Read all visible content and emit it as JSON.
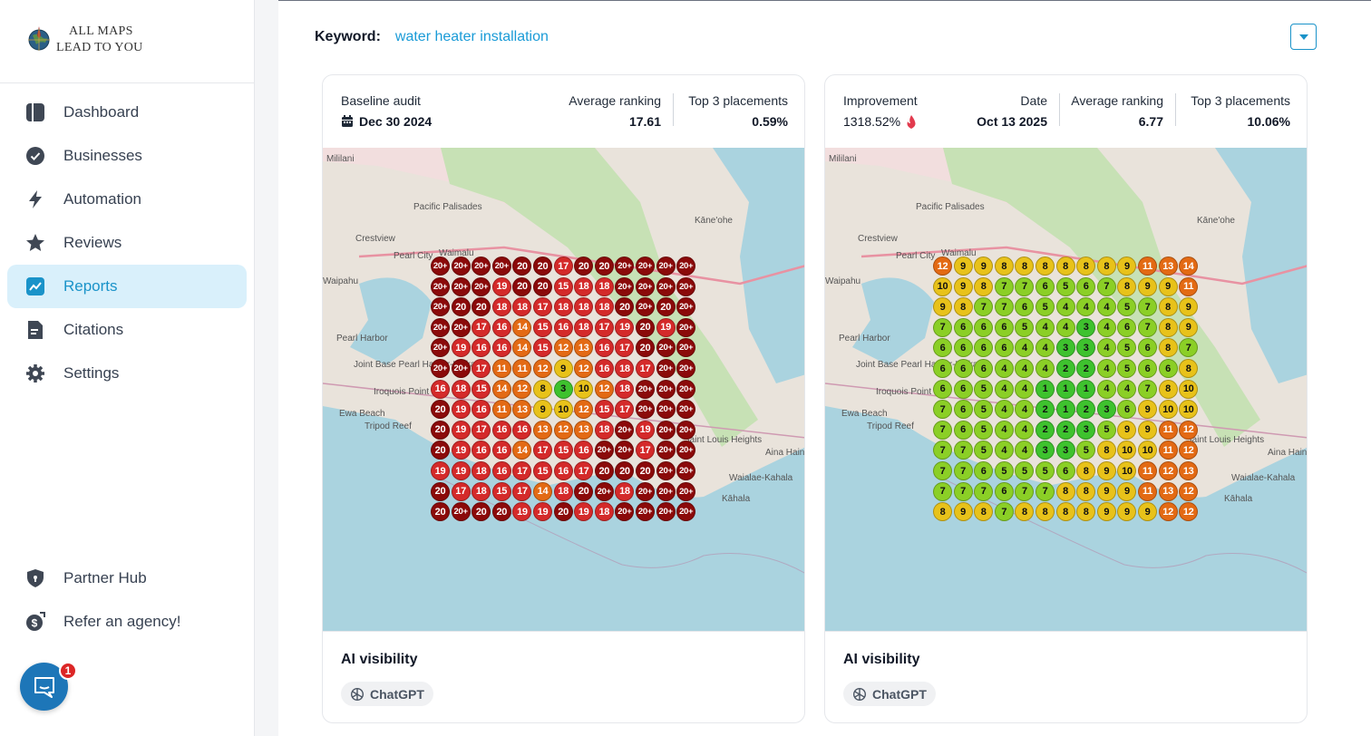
{
  "brand": {
    "line1": "ALL MAPS",
    "line2": "LEAD TO YOU"
  },
  "nav": {
    "items": [
      {
        "label": "Dashboard",
        "icon": "dashboard-icon"
      },
      {
        "label": "Businesses",
        "icon": "verified-badge-icon"
      },
      {
        "label": "Automation",
        "icon": "lightning-icon"
      },
      {
        "label": "Reviews",
        "icon": "star-icon"
      },
      {
        "label": "Reports",
        "icon": "chart-line-icon",
        "active": true
      },
      {
        "label": "Citations",
        "icon": "document-icon"
      },
      {
        "label": "Settings",
        "icon": "gear-icon"
      }
    ],
    "bottom": [
      {
        "label": "Partner Hub",
        "icon": "shield-icon"
      },
      {
        "label": "Refer an agency!",
        "icon": "dollar-icon"
      }
    ]
  },
  "chat": {
    "badge": "1"
  },
  "keyword": {
    "label": "Keyword:",
    "value": "water heater installation"
  },
  "colors": {
    "accent": "#1a93c9",
    "green": "#3ec22e",
    "yellow": "#e8c21a",
    "orange": "#e36a14",
    "red": "#d42a2a",
    "darkred": "#8b0a0a"
  },
  "map_labels": [
    "Mililani",
    "Pacific Palisades",
    "Crestview",
    "Pearl City",
    "Waimalu",
    "Waipahu",
    "Pearl Harbor",
    "Joint Base Pearl Harbor-Hickam",
    "Iroquois Point",
    "Ewa Beach",
    "Tripod Reef",
    "Kāne'ohe",
    "Waialae-Kahala",
    "Kāhala",
    "Saint Louis Heights",
    "Aina Haina"
  ],
  "cards": [
    {
      "stat1": {
        "label": "Baseline audit",
        "value": "Dec 30 2024",
        "icon": "calendar-icon"
      },
      "stat2": {
        "label": "Average ranking",
        "value": "17.61"
      },
      "stat3": {
        "label": "Top 3 placements",
        "value": "0.59%"
      },
      "footer": {
        "title": "AI visibility",
        "chip": "ChatGPT",
        "chip_icon": "openai-icon"
      },
      "grid": [
        [
          "20+",
          "20+",
          "20+",
          "20+",
          "20",
          "20",
          "17",
          "20",
          "20",
          "20+",
          "20+",
          "20+",
          "20+"
        ],
        [
          "20+",
          "20+",
          "20+",
          "19",
          "20",
          "20",
          "15",
          "18",
          "18",
          "20+",
          "20+",
          "20+",
          "20+"
        ],
        [
          "20+",
          "20",
          "20",
          "18",
          "18",
          "17",
          "18",
          "18",
          "18",
          "20",
          "20+",
          "20",
          "20+"
        ],
        [
          "20+",
          "20+",
          "17",
          "16",
          "14",
          "15",
          "16",
          "18",
          "17",
          "19",
          "20",
          "19",
          "20+"
        ],
        [
          "20+",
          "19",
          "16",
          "16",
          "14",
          "15",
          "12",
          "13",
          "16",
          "17",
          "20",
          "20+",
          "20+"
        ],
        [
          "20+",
          "20+",
          "17",
          "11",
          "11",
          "12",
          "9",
          "12",
          "16",
          "18",
          "17",
          "20+",
          "20+"
        ],
        [
          "16",
          "18",
          "15",
          "14",
          "12",
          "8",
          "3",
          "10",
          "12",
          "18",
          "20+",
          "20+",
          "20+"
        ],
        [
          "20",
          "19",
          "16",
          "11",
          "13",
          "9",
          "10",
          "12",
          "15",
          "17",
          "20+",
          "20+",
          "20+"
        ],
        [
          "20",
          "19",
          "17",
          "16",
          "16",
          "13",
          "12",
          "13",
          "18",
          "20+",
          "19",
          "20+",
          "20+"
        ],
        [
          "20",
          "19",
          "16",
          "16",
          "14",
          "17",
          "15",
          "16",
          "20+",
          "20+",
          "17",
          "20+",
          "20+"
        ],
        [
          "19",
          "19",
          "18",
          "16",
          "17",
          "15",
          "16",
          "17",
          "20",
          "20",
          "20",
          "20+",
          "20+"
        ],
        [
          "20",
          "17",
          "18",
          "15",
          "17",
          "14",
          "18",
          "20",
          "20+",
          "18",
          "20+",
          "20+",
          "20+"
        ],
        [
          "20",
          "20+",
          "20",
          "20",
          "19",
          "19",
          "20",
          "19",
          "18",
          "20+",
          "20+",
          "20+",
          "20+"
        ]
      ]
    },
    {
      "stat1": {
        "label": "Improvement",
        "value": "1318.52%",
        "icon": "fire-icon"
      },
      "stat1b": {
        "label": "Date",
        "value": "Oct 13 2025"
      },
      "stat2": {
        "label": "Average ranking",
        "value": "6.77"
      },
      "stat3": {
        "label": "Top 3 placements",
        "value": "10.06%"
      },
      "footer": {
        "title": "AI visibility",
        "chip": "ChatGPT",
        "chip_icon": "openai-icon"
      },
      "grid": [
        [
          "12",
          "9",
          "9",
          "8",
          "8",
          "8",
          "8",
          "8",
          "8",
          "9",
          "11",
          "13",
          "14"
        ],
        [
          "10",
          "9",
          "8",
          "7",
          "7",
          "6",
          "5",
          "6",
          "7",
          "8",
          "9",
          "9",
          "11"
        ],
        [
          "9",
          "8",
          "7",
          "7",
          "6",
          "5",
          "4",
          "4",
          "4",
          "5",
          "7",
          "8",
          "9"
        ],
        [
          "7",
          "6",
          "6",
          "6",
          "5",
          "4",
          "4",
          "3",
          "4",
          "6",
          "7",
          "8",
          "9"
        ],
        [
          "6",
          "6",
          "6",
          "6",
          "4",
          "4",
          "3",
          "3",
          "4",
          "5",
          "6",
          "8",
          "7"
        ],
        [
          "6",
          "6",
          "6",
          "4",
          "4",
          "4",
          "2",
          "2",
          "4",
          "5",
          "6",
          "6",
          "8"
        ],
        [
          "6",
          "6",
          "5",
          "4",
          "4",
          "1",
          "1",
          "1",
          "4",
          "4",
          "7",
          "8",
          "10"
        ],
        [
          "7",
          "6",
          "5",
          "4",
          "4",
          "2",
          "1",
          "2",
          "3",
          "6",
          "9",
          "10",
          "10"
        ],
        [
          "7",
          "6",
          "5",
          "4",
          "4",
          "2",
          "2",
          "3",
          "5",
          "9",
          "9",
          "11",
          "12"
        ],
        [
          "7",
          "7",
          "5",
          "4",
          "4",
          "3",
          "3",
          "5",
          "8",
          "10",
          "10",
          "11",
          "12"
        ],
        [
          "7",
          "7",
          "6",
          "5",
          "5",
          "5",
          "6",
          "8",
          "9",
          "10",
          "11",
          "12",
          "13"
        ],
        [
          "7",
          "7",
          "7",
          "6",
          "7",
          "7",
          "8",
          "8",
          "9",
          "9",
          "11",
          "13",
          "12"
        ],
        [
          "8",
          "9",
          "8",
          "7",
          "8",
          "8",
          "8",
          "8",
          "9",
          "9",
          "9",
          "12",
          "12"
        ]
      ]
    }
  ]
}
